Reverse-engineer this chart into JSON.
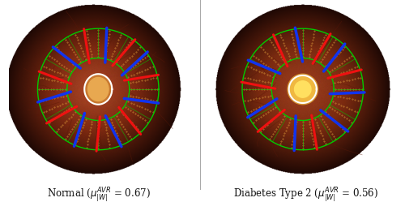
{
  "figsize": [
    5.0,
    2.65
  ],
  "dpi": 100,
  "background_color": "#ffffff",
  "left_label_normal": "Normal",
  "left_avr": "0.67",
  "right_label": "Diabetes Type 2",
  "right_avr": "0.56",
  "left_bg_center": "#a04020",
  "left_bg_mid": "#7a2810",
  "left_bg_edge": "#2a0a04",
  "right_bg_center": "#9a3818",
  "right_bg_mid": "#7a2a10",
  "right_bg_edge": "#2a0a04",
  "outer_circle_color": "#00cc00",
  "artery_color": "#ee1111",
  "vein_color": "#1133ee",
  "dot_color": "#cc8844",
  "sector_line_color": "#00cc00",
  "label_fontsize": 8.5
}
